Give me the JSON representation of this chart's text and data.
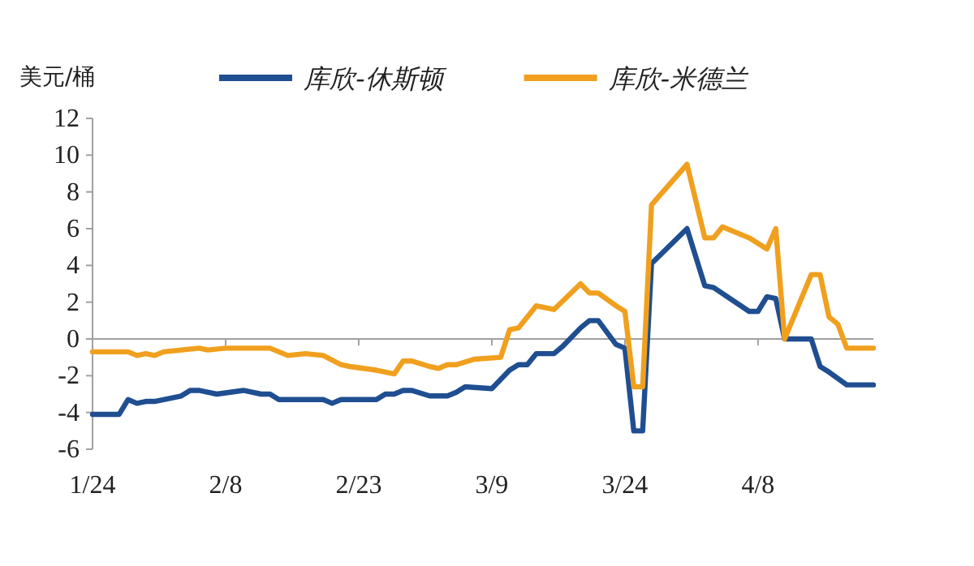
{
  "chart_data": {
    "type": "line",
    "ylabel": "美元/桶",
    "xlim": [
      "--01-24",
      "--04-21"
    ],
    "ylim": [
      -6,
      12
    ],
    "xticks": [
      {
        "value": "--01-24",
        "label": "1/24"
      },
      {
        "value": "--02-08",
        "label": "2/8"
      },
      {
        "value": "--02-23",
        "label": "2/23"
      },
      {
        "value": "--03-09",
        "label": "3/9"
      },
      {
        "value": "--03-24",
        "label": "3/24"
      },
      {
        "value": "--04-08",
        "label": "4/8"
      }
    ],
    "yticks": [
      -6,
      -4,
      -2,
      0,
      2,
      4,
      6,
      8,
      10,
      12
    ],
    "legend": "top",
    "series": [
      {
        "name": "库欣-休斯顿",
        "color": "#1f4e91",
        "x": [
          "--01-24",
          "--01-27",
          "--01-28",
          "--01-29",
          "--01-30",
          "--01-31",
          "--02-03",
          "--02-04",
          "--02-05",
          "--02-07",
          "--02-10",
          "--02-12",
          "--02-13",
          "--02-14",
          "--02-19",
          "--02-20",
          "--02-21",
          "--02-25",
          "--02-26",
          "--02-27",
          "--02-28",
          "--02-29",
          "--03-02",
          "--03-04",
          "--03-05",
          "--03-06",
          "--03-09",
          "--03-11",
          "--03-12",
          "--03-13",
          "--03-14",
          "--03-16",
          "--03-17",
          "--03-19",
          "--03-20",
          "--03-21",
          "--03-23",
          "--03-24",
          "--03-25",
          "--03-26",
          "--03-27",
          "--03-31",
          "--04-02",
          "--04-03",
          "--04-07",
          "--04-08",
          "--04-09",
          "--04-10",
          "--04-11",
          "--04-14",
          "--04-15",
          "--04-16",
          "--04-18",
          "--04-21"
        ],
        "values": [
          -4.1,
          -4.1,
          -3.3,
          -3.5,
          -3.4,
          -3.4,
          -3.1,
          -2.8,
          -2.8,
          -3.0,
          -2.8,
          -3.0,
          -3.0,
          -3.3,
          -3.3,
          -3.5,
          -3.3,
          -3.3,
          -3.0,
          -3.0,
          -2.8,
          -2.8,
          -3.1,
          -3.1,
          -2.9,
          -2.6,
          -2.7,
          -1.7,
          -1.4,
          -1.4,
          -0.8,
          -0.8,
          -0.4,
          0.6,
          1.0,
          1.0,
          -0.3,
          -0.5,
          -5.0,
          -5.0,
          4.1,
          6.0,
          2.9,
          2.8,
          1.5,
          1.5,
          2.3,
          2.2,
          0,
          0,
          -1.5,
          -1.8,
          -2.5,
          -2.5
        ]
      },
      {
        "name": "库欣-米德兰",
        "color": "#f0a01e",
        "x": [
          "--01-24",
          "--01-28",
          "--01-29",
          "--01-30",
          "--01-31",
          "--02-01",
          "--02-03",
          "--02-05",
          "--02-06",
          "--02-08",
          "--02-13",
          "--02-15",
          "--02-17",
          "--02-19",
          "--02-21",
          "--02-22",
          "--02-25",
          "--02-27",
          "--02-28",
          "--02-29",
          "--03-02",
          "--03-03",
          "--03-04",
          "--03-05",
          "--03-07",
          "--03-10",
          "--03-11",
          "--03-12",
          "--03-14",
          "--03-16",
          "--03-19",
          "--03-20",
          "--03-21",
          "--03-23",
          "--03-24",
          "--03-25",
          "--03-26",
          "--03-27",
          "--03-31",
          "--04-02",
          "--04-03",
          "--04-04",
          "--04-07",
          "--04-09",
          "--04-10",
          "--04-11",
          "--04-14",
          "--04-15",
          "--04-16",
          "--04-17",
          "--04-18",
          "--04-21"
        ],
        "values": [
          -0.7,
          -0.7,
          -0.9,
          -0.8,
          -0.9,
          -0.7,
          -0.6,
          -0.5,
          -0.6,
          -0.5,
          -0.5,
          -0.9,
          -0.8,
          -0.9,
          -1.4,
          -1.5,
          -1.7,
          -1.9,
          -1.2,
          -1.2,
          -1.5,
          -1.6,
          -1.4,
          -1.4,
          -1.1,
          -1.0,
          0.5,
          0.6,
          1.8,
          1.6,
          3.0,
          2.5,
          2.5,
          1.8,
          1.5,
          -2.6,
          -2.6,
          7.3,
          9.5,
          5.5,
          5.5,
          6.1,
          5.5,
          4.9,
          6.0,
          0,
          3.5,
          3.5,
          1.2,
          0.8,
          -0.5,
          -0.5
        ]
      }
    ]
  }
}
